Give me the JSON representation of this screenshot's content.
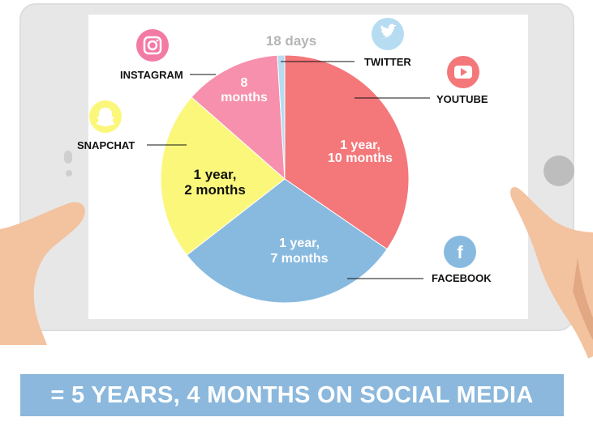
{
  "chart_data": {
    "type": "pie",
    "unit": "months",
    "slices": [
      {
        "label": "YOUTUBE",
        "value_text_1": "1 year,",
        "value_text_2": "10 months",
        "value": 22,
        "color": "#f4777a",
        "text_color": "#ffffff"
      },
      {
        "label": "FACEBOOK",
        "value_text_1": "1 year,",
        "value_text_2": "7 months",
        "value": 19,
        "color": "#88bae0",
        "text_color": "#ffffff"
      },
      {
        "label": "SNAPCHAT",
        "value_text_1": "1 year,",
        "value_text_2": "2 months",
        "value": 14,
        "color": "#fbf77b",
        "text_color": "#111111"
      },
      {
        "label": "INSTAGRAM",
        "value_text_1": "8",
        "value_text_2": "months",
        "value": 8,
        "color": "#f690ac",
        "text_color": "#ffffff"
      },
      {
        "label": "TWITTER",
        "value_text_1": "18 days",
        "value_text_2": "",
        "value": 0.6,
        "color": "#b6dcf2",
        "text_color": "#b5b5b5"
      }
    ]
  },
  "icons": {
    "youtube": {
      "name": "youtube-icon",
      "color": "#f4777a"
    },
    "facebook": {
      "name": "facebook-icon",
      "color": "#88bae0",
      "glyph": "f"
    },
    "snapchat": {
      "name": "snapchat-icon",
      "color": "#fbf77b"
    },
    "instagram": {
      "name": "instagram-icon",
      "color": "#f27aa4"
    },
    "twitter": {
      "name": "twitter-icon",
      "color": "#b6dcf2"
    }
  },
  "banner": {
    "text": "= 5 YEARS, 4 MONTHS ON SOCIAL MEDIA",
    "color": "#8bb8dc"
  },
  "colors": {
    "tablet": "#e7e7e7",
    "skin": "#f3c29f",
    "skin_shadow": "#e2a883",
    "cuff": "#ffffff"
  }
}
